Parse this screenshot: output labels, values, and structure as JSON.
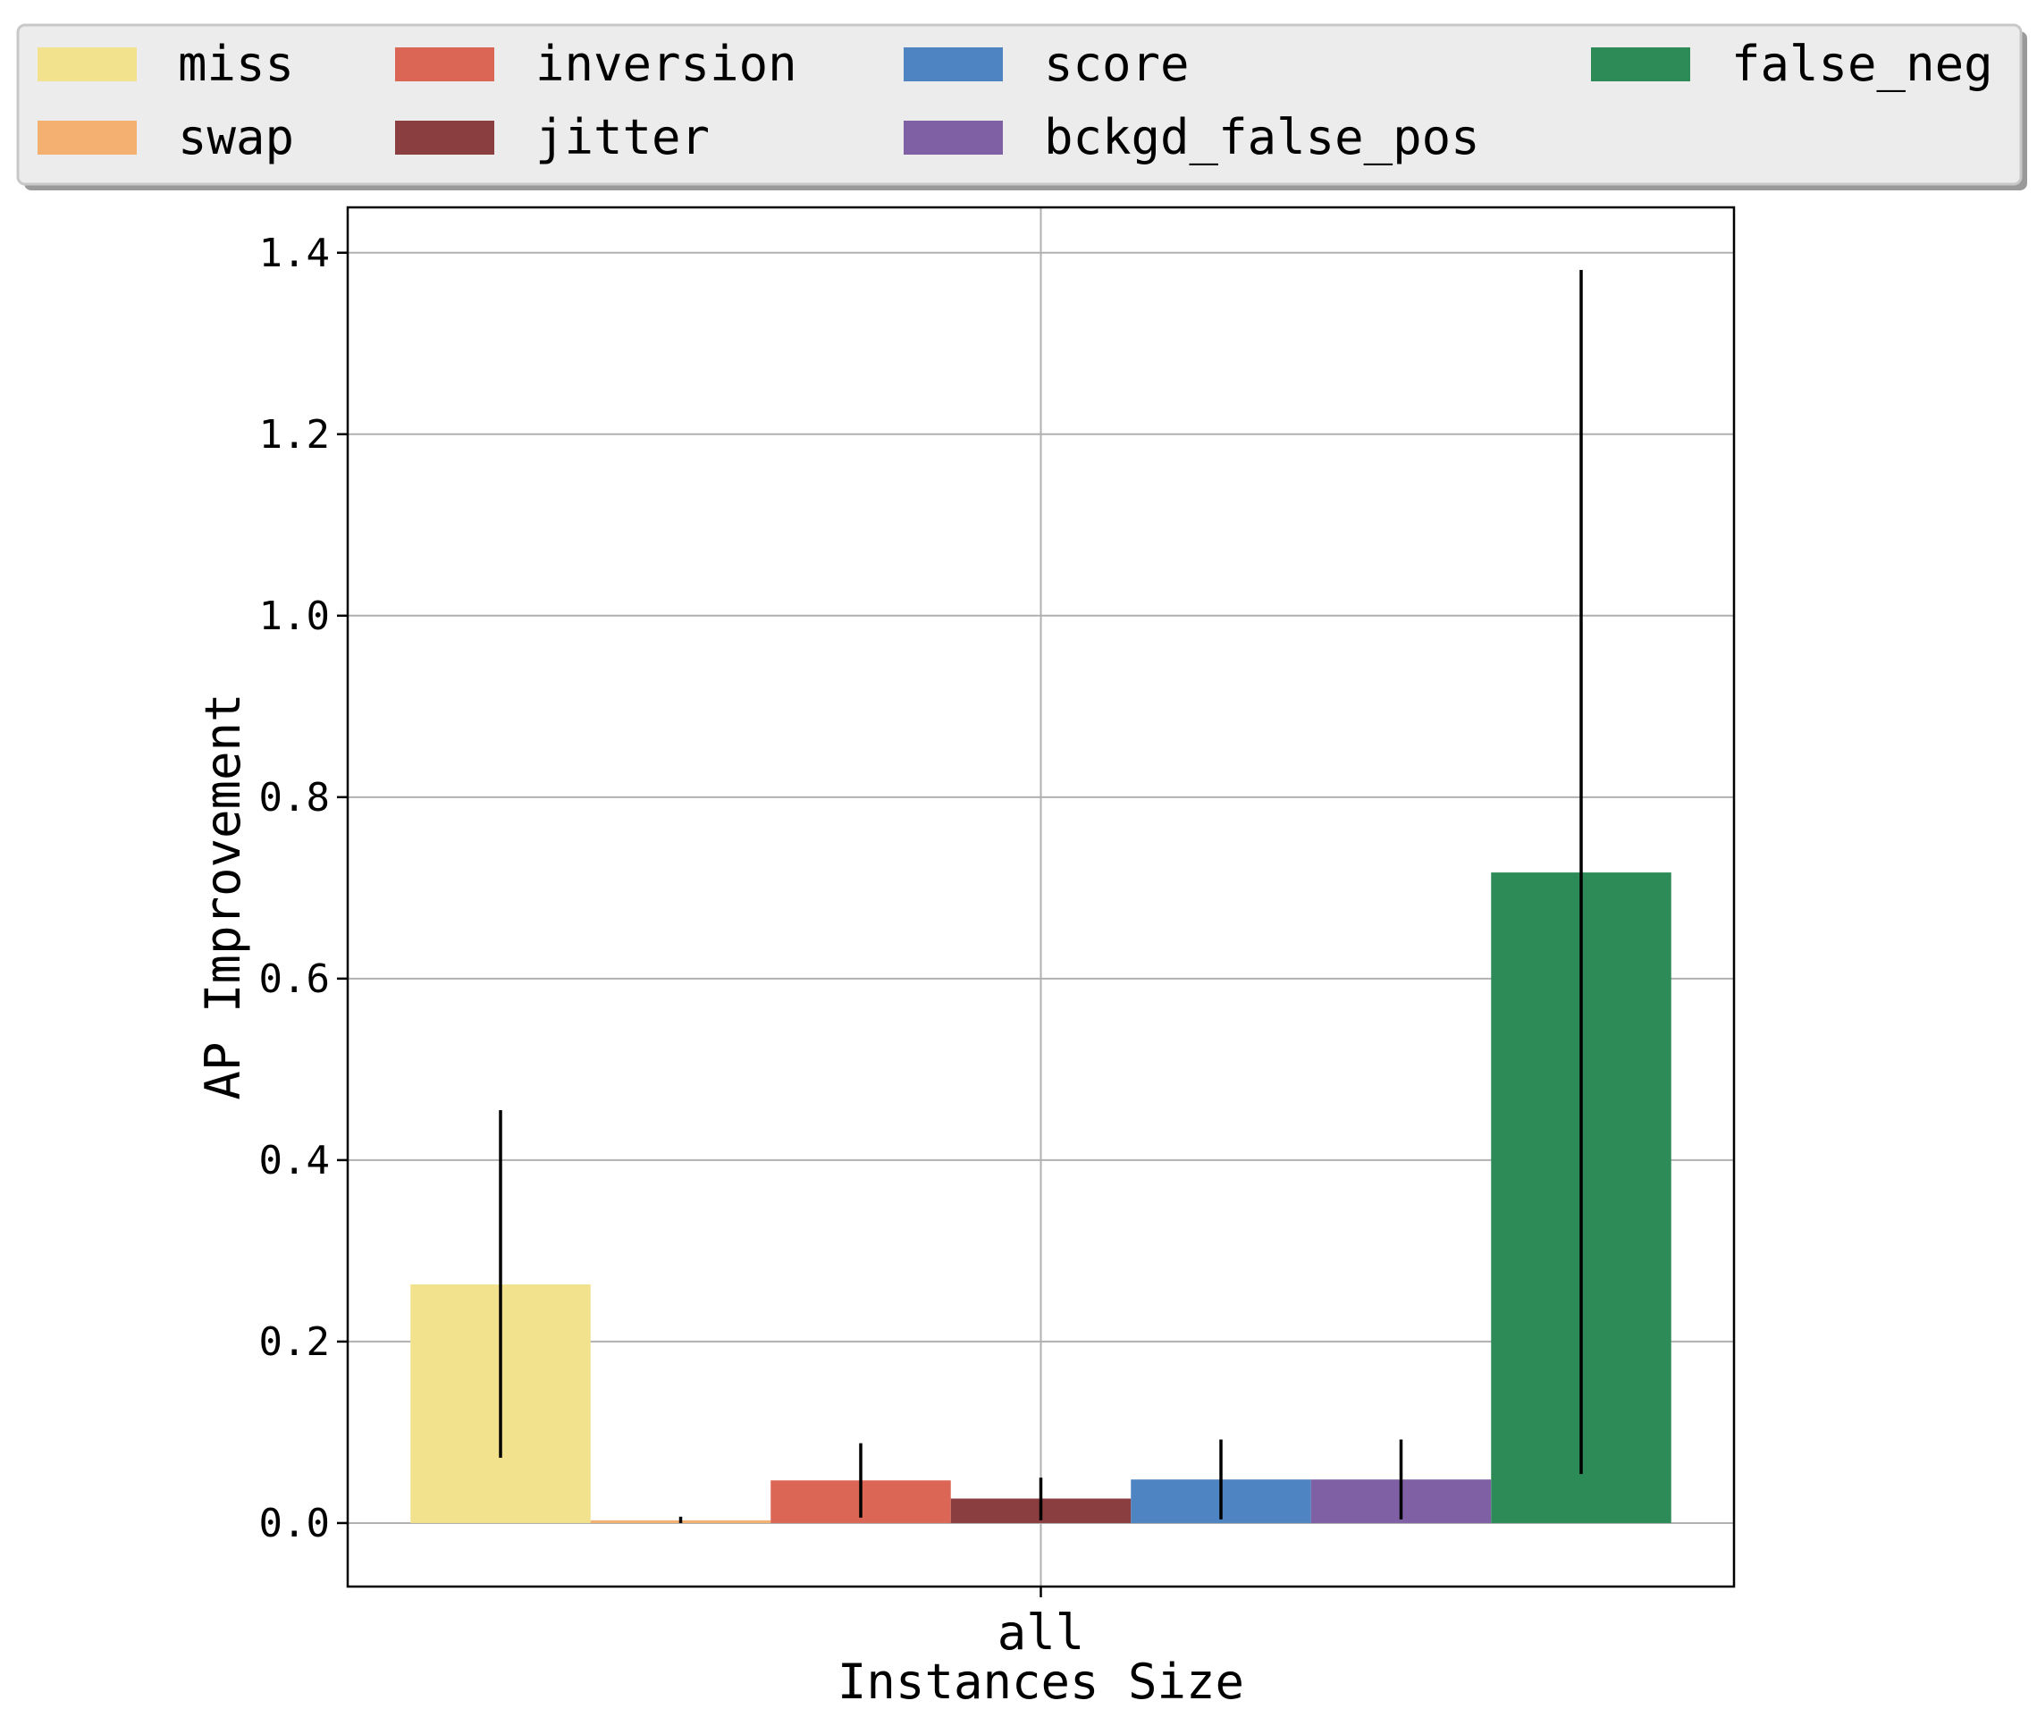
{
  "chart_data": {
    "type": "bar",
    "title": "",
    "xlabel": "Instances Size",
    "ylabel": "AP Improvement",
    "categories": [
      "all"
    ],
    "ylim": [
      -0.07,
      1.45
    ],
    "yticks": [
      "0.0",
      "0.2",
      "0.4",
      "0.6",
      "0.8",
      "1.0",
      "1.2",
      "1.4"
    ],
    "ytick_values": [
      0.0,
      0.2,
      0.4,
      0.6,
      0.8,
      1.0,
      1.2,
      1.4
    ],
    "grid": true,
    "legend_position": "top",
    "series": [
      {
        "name": "miss",
        "values": [
          0.263
        ],
        "err_low": [
          0.072
        ],
        "err_high": [
          0.455
        ],
        "color": "#F2E28D"
      },
      {
        "name": "swap",
        "values": [
          0.003
        ],
        "err_low": [
          0.0
        ],
        "err_high": [
          0.007
        ],
        "color": "#F4B071"
      },
      {
        "name": "inversion",
        "values": [
          0.047
        ],
        "err_low": [
          0.006
        ],
        "err_high": [
          0.088
        ],
        "color": "#DC6656"
      },
      {
        "name": "jitter",
        "values": [
          0.027
        ],
        "err_low": [
          0.003
        ],
        "err_high": [
          0.05
        ],
        "color": "#8B3E40"
      },
      {
        "name": "score",
        "values": [
          0.048
        ],
        "err_low": [
          0.004
        ],
        "err_high": [
          0.092
        ],
        "color": "#4E84C1"
      },
      {
        "name": "bckgd_false_pos",
        "values": [
          0.048
        ],
        "err_low": [
          0.004
        ],
        "err_high": [
          0.092
        ],
        "color": "#7F60A5"
      },
      {
        "name": "false_neg",
        "values": [
          0.717
        ],
        "err_low": [
          0.054
        ],
        "err_high": [
          1.381
        ],
        "color": "#2D8B57"
      }
    ]
  }
}
